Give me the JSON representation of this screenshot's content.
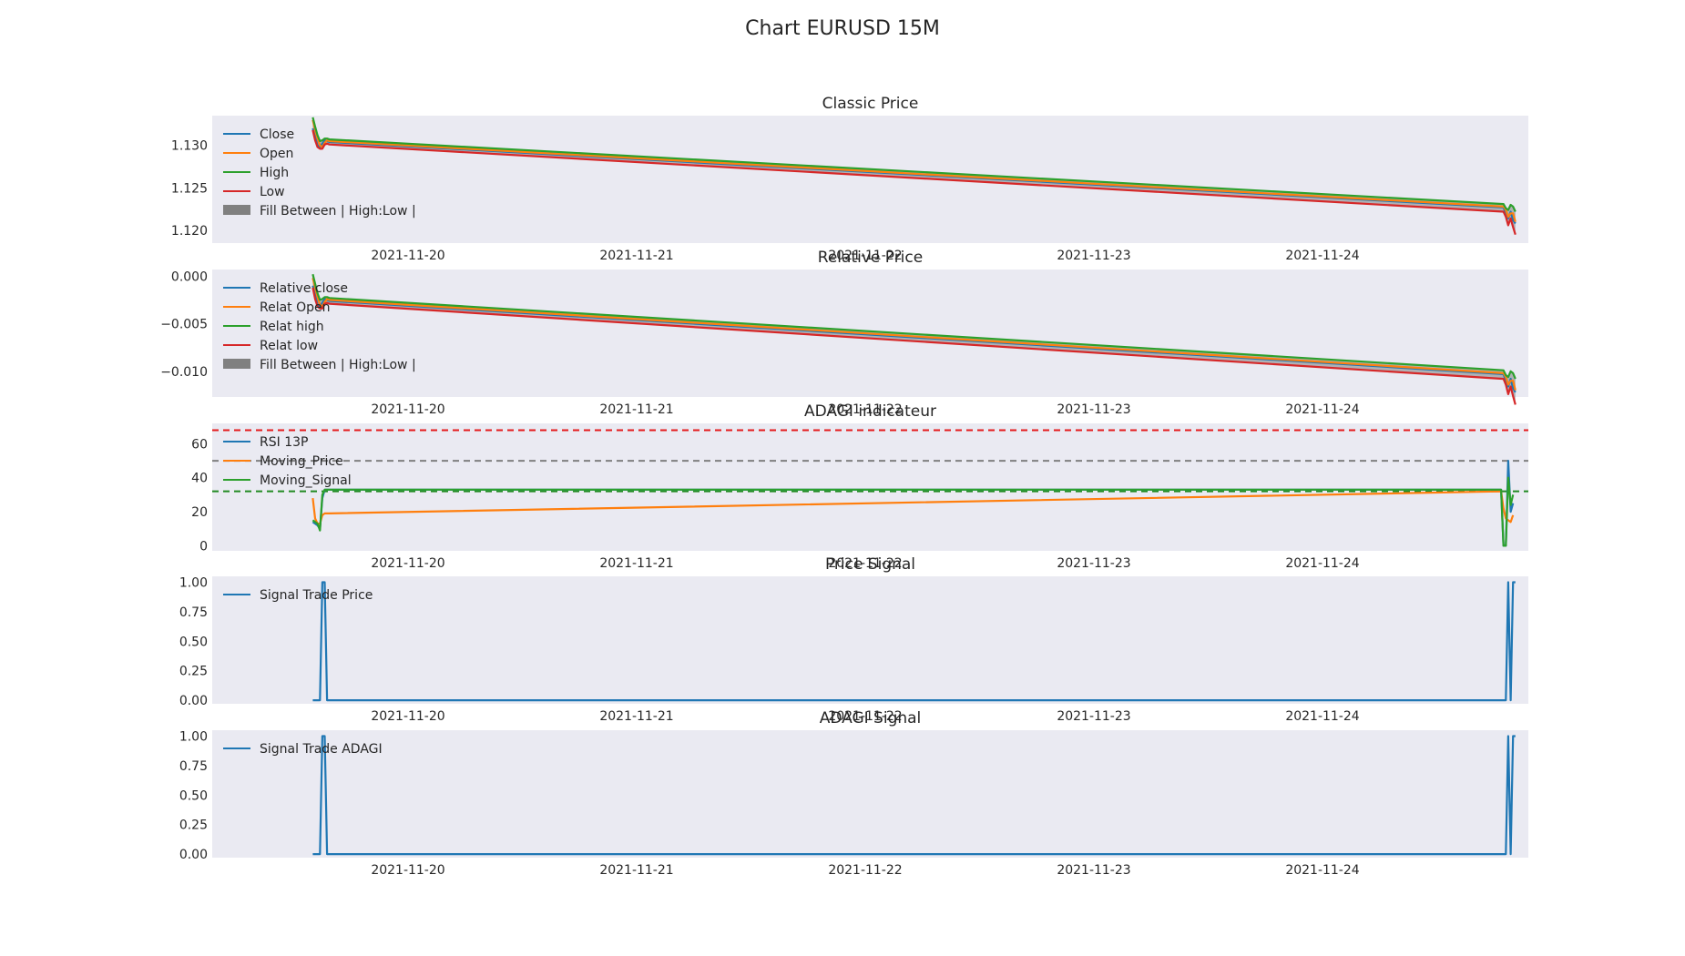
{
  "figure_title": "Chart EURUSD 15M",
  "colors": {
    "axes_bg": "#eaeaf2",
    "blue": "#1f77b4",
    "orange": "#ff7f0e",
    "green": "#2ca02c",
    "red": "#d62728",
    "fill_gray": "#808080",
    "line_red": "#e41a1c",
    "line_gray": "#808080",
    "line_green": "#228b22"
  },
  "chart_data": [
    {
      "type": "line",
      "title": "Classic Price",
      "x_tick_labels": [
        "2021-11-20",
        "2021-11-21",
        "2021-11-22",
        "2021-11-23",
        "2021-11-24"
      ],
      "ylim": [
        1.1185,
        1.1335
      ],
      "y_ticks": [
        1.12,
        1.125,
        1.13
      ],
      "y_tick_labels": [
        "1.120",
        "1.125",
        "1.130"
      ],
      "legend_position": "upper-left",
      "legend": [
        "Close",
        "Open",
        "High",
        "Low",
        "Fill Between  | High:Low |"
      ],
      "x": [
        "2021-11-19 14:00",
        "2021-11-19 14:15",
        "2021-11-19 14:30",
        "2021-11-19 14:45",
        "2021-11-19 15:00",
        "2021-11-19 15:15",
        "2021-11-19 15:30",
        "2021-11-19 15:45",
        "2021-11-24 19:00",
        "2021-11-24 19:15",
        "2021-11-24 19:30",
        "2021-11-24 19:45",
        "2021-11-24 20:00",
        "2021-11-24 20:15"
      ],
      "series": [
        {
          "name": "Close",
          "color": "blue",
          "values": [
            1.132,
            1.131,
            1.13,
            1.1298,
            1.1302,
            1.1306,
            1.1305,
            1.1304,
            1.1227,
            1.122,
            1.1214,
            1.1222,
            1.1212,
            1.1208
          ]
        },
        {
          "name": "Open",
          "color": "orange",
          "values": [
            1.133,
            1.1318,
            1.1308,
            1.13,
            1.1298,
            1.1303,
            1.1306,
            1.1305,
            1.1228,
            1.1224,
            1.1216,
            1.122,
            1.122,
            1.121
          ]
        },
        {
          "name": "High",
          "color": "green",
          "values": [
            1.1333,
            1.1322,
            1.1312,
            1.1305,
            1.1306,
            1.1308,
            1.1308,
            1.1307,
            1.1231,
            1.1226,
            1.1224,
            1.123,
            1.1228,
            1.1222
          ]
        },
        {
          "name": "Low",
          "color": "red",
          "values": [
            1.1318,
            1.1306,
            1.1298,
            1.1296,
            1.1296,
            1.1301,
            1.1302,
            1.1301,
            1.1222,
            1.1216,
            1.1206,
            1.1214,
            1.1204,
            1.1195
          ]
        }
      ],
      "fill_between": {
        "upper": "High",
        "lower": "Low",
        "color": "fill_gray"
      }
    },
    {
      "type": "line",
      "title": "Relative Price",
      "x_tick_labels": [
        "2021-11-20",
        "2021-11-21",
        "2021-11-22",
        "2021-11-23",
        "2021-11-24"
      ],
      "ylim": [
        -0.0127,
        0.0007
      ],
      "y_ticks": [
        -0.01,
        -0.005,
        0.0
      ],
      "y_tick_labels": [
        "−0.010",
        "−0.005",
        "0.000"
      ],
      "legend_position": "upper-left",
      "legend": [
        "Relative close",
        "Relat Open",
        "Relat high",
        "Relat low",
        "Fill Between | High:Low |"
      ],
      "x": [
        "2021-11-19 14:00",
        "2021-11-19 14:15",
        "2021-11-19 14:30",
        "2021-11-19 14:45",
        "2021-11-19 15:00",
        "2021-11-19 15:15",
        "2021-11-19 15:30",
        "2021-11-19 15:45",
        "2021-11-24 19:00",
        "2021-11-24 19:15",
        "2021-11-24 19:30",
        "2021-11-24 19:45",
        "2021-11-24 20:00",
        "2021-11-24 20:15"
      ],
      "series": [
        {
          "name": "Relative close",
          "color": "blue",
          "values": [
            -0.001,
            -0.002,
            -0.003,
            -0.0032,
            -0.0028,
            -0.0024,
            -0.0025,
            -0.0026,
            -0.0103,
            -0.011,
            -0.0116,
            -0.0108,
            -0.0118,
            -0.0122
          ]
        },
        {
          "name": "Relat Open",
          "color": "orange",
          "values": [
            -0.0002,
            -0.0012,
            -0.0022,
            -0.003,
            -0.0032,
            -0.0027,
            -0.0024,
            -0.0025,
            -0.0102,
            -0.0106,
            -0.0114,
            -0.011,
            -0.011,
            -0.012
          ]
        },
        {
          "name": "Relat high",
          "color": "green",
          "values": [
            0.0002,
            -0.0008,
            -0.0018,
            -0.0025,
            -0.0024,
            -0.0022,
            -0.0022,
            -0.0023,
            -0.0099,
            -0.0104,
            -0.0106,
            -0.01,
            -0.0102,
            -0.0108
          ]
        },
        {
          "name": "Relat low",
          "color": "red",
          "values": [
            -0.0012,
            -0.0024,
            -0.0032,
            -0.0034,
            -0.0034,
            -0.0029,
            -0.0028,
            -0.0029,
            -0.0108,
            -0.0114,
            -0.0124,
            -0.0116,
            -0.0126,
            -0.0135
          ]
        }
      ],
      "fill_between": {
        "upper": "Relat high",
        "lower": "Relat low",
        "color": "fill_gray"
      }
    },
    {
      "type": "line",
      "title": "ADAGI indicateur",
      "x_tick_labels": [
        "2021-11-20",
        "2021-11-21",
        "2021-11-22",
        "2021-11-23",
        "2021-11-24"
      ],
      "ylim": [
        -3,
        72
      ],
      "y_ticks": [
        0,
        20,
        40,
        60
      ],
      "y_tick_labels": [
        "0",
        "20",
        "40",
        "60"
      ],
      "legend_position": "upper-left",
      "legend": [
        "RSI 13P",
        "Moving_Price",
        "Moving_Signal"
      ],
      "x": [
        "2021-11-19 14:00",
        "2021-11-19 14:15",
        "2021-11-19 14:30",
        "2021-11-19 14:45",
        "2021-11-19 15:00",
        "2021-11-19 15:15",
        "2021-11-19 15:30",
        "2021-11-19 15:45",
        "2021-11-24 18:45",
        "2021-11-24 19:00",
        "2021-11-24 19:15",
        "2021-11-24 19:30",
        "2021-11-24 19:45",
        "2021-11-24 20:00"
      ],
      "series": [
        {
          "name": "RSI 13P",
          "color": "blue",
          "values": [
            14,
            13,
            12,
            10,
            28,
            33,
            33,
            33,
            33,
            0,
            0,
            50,
            20,
            25
          ]
        },
        {
          "name": "Moving_Price",
          "color": "orange",
          "values": [
            28,
            16,
            13,
            13,
            18,
            19,
            19,
            19,
            32,
            22,
            16,
            15,
            14,
            18
          ]
        },
        {
          "name": "Moving_Signal",
          "color": "green",
          "values": [
            15,
            14,
            13,
            9,
            30,
            33,
            33,
            33,
            33,
            0,
            0,
            40,
            24,
            30
          ]
        }
      ],
      "hlines": [
        {
          "y": 68,
          "color": "line_red"
        },
        {
          "y": 50,
          "color": "line_gray"
        },
        {
          "y": 32,
          "color": "line_green"
        }
      ]
    },
    {
      "type": "line",
      "title": "Price Signal",
      "x_tick_labels": [
        "2021-11-20",
        "2021-11-21",
        "2021-11-22",
        "2021-11-23",
        "2021-11-24"
      ],
      "ylim": [
        -0.03,
        1.05
      ],
      "y_ticks": [
        0,
        0.25,
        0.5,
        0.75,
        1.0
      ],
      "y_tick_labels": [
        "0.00",
        "0.25",
        "0.50",
        "0.75",
        "1.00"
      ],
      "legend_position": "upper-left",
      "legend": [
        "Signal Trade Price"
      ],
      "x": [
        "2021-11-19 14:00",
        "2021-11-19 14:45",
        "2021-11-19 15:00",
        "2021-11-19 15:15",
        "2021-11-19 15:30",
        "2021-11-19 15:45",
        "2021-11-24 19:15",
        "2021-11-24 19:30",
        "2021-11-24 19:45",
        "2021-11-24 20:00",
        "2021-11-24 20:15"
      ],
      "series": [
        {
          "name": "Signal Trade Price",
          "color": "blue",
          "values": [
            0,
            0,
            1,
            1,
            0,
            0,
            0,
            1,
            0,
            1,
            1
          ]
        }
      ]
    },
    {
      "type": "line",
      "title": "ADAGI Signal",
      "x_tick_labels": [
        "2021-11-20",
        "2021-11-21",
        "2021-11-22",
        "2021-11-23",
        "2021-11-24"
      ],
      "ylim": [
        -0.03,
        1.05
      ],
      "y_ticks": [
        0,
        0.25,
        0.5,
        0.75,
        1.0
      ],
      "y_tick_labels": [
        "0.00",
        "0.25",
        "0.50",
        "0.75",
        "1.00"
      ],
      "legend_position": "upper-left",
      "legend": [
        "Signal Trade ADAGI"
      ],
      "x": [
        "2021-11-19 14:00",
        "2021-11-19 14:45",
        "2021-11-19 15:00",
        "2021-11-19 15:15",
        "2021-11-19 15:30",
        "2021-11-19 15:45",
        "2021-11-24 19:15",
        "2021-11-24 19:30",
        "2021-11-24 19:45",
        "2021-11-24 20:00",
        "2021-11-24 20:15"
      ],
      "series": [
        {
          "name": "Signal Trade ADAGI",
          "color": "blue",
          "values": [
            0,
            0,
            1,
            1,
            0,
            0,
            0,
            1,
            0,
            1,
            1
          ]
        }
      ]
    }
  ]
}
